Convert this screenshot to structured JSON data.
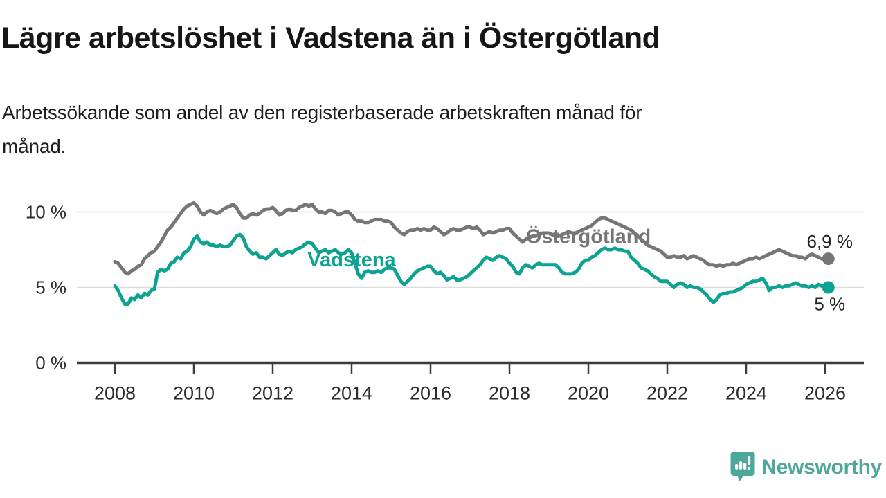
{
  "header": {
    "title": "Lägre arbetslöshet i Vadstena än i Östergötland",
    "subtitle_line1": "Arbetssökande som andel av den registerbaserade arbetskraften månad för",
    "subtitle_line2": "månad."
  },
  "branding": {
    "logo_text": "Newsworthy",
    "logo_color": "#4da79b"
  },
  "chart_data": {
    "type": "line",
    "title": "Lägre arbetslöshet i Vadstena än i Östergötland",
    "subtitle": "Arbetssökande som andel av den registerbaserade arbetskraften månad för månad.",
    "x_unit": "month",
    "x_start_year": 2008,
    "x_start": "2008-01",
    "x_end": "2026-02",
    "x_ticks": [
      2008,
      2010,
      2012,
      2014,
      2016,
      2018,
      2020,
      2022,
      2024,
      2026
    ],
    "y_ticks": [
      {
        "value": 10,
        "label": "10 %"
      },
      {
        "value": 5,
        "label": "5 %"
      },
      {
        "value": 0,
        "label": "0 %"
      }
    ],
    "ylim": [
      0,
      11
    ],
    "grid": true,
    "grid_color": "#dcdcdc",
    "axis_color": "#3c3c3c",
    "legend_position": "inline-labels",
    "series": [
      {
        "name": "Östergötland",
        "color": "#767676",
        "end_label": "6,9 %",
        "last_value": 6.9,
        "end_label_side": "above",
        "label_anchor": {
          "year": 2020.0,
          "value": 8.4
        },
        "values": [
          6.7,
          6.6,
          6.3,
          6.0,
          5.9,
          6.1,
          6.2,
          6.4,
          6.5,
          6.9,
          7.1,
          7.3,
          7.4,
          7.7,
          8.0,
          8.4,
          8.8,
          9.0,
          9.3,
          9.6,
          9.9,
          10.2,
          10.4,
          10.5,
          10.6,
          10.4,
          10.0,
          9.8,
          10.0,
          10.1,
          10.0,
          9.9,
          10.0,
          10.2,
          10.3,
          10.4,
          10.5,
          10.3,
          9.9,
          9.6,
          9.6,
          9.8,
          9.9,
          9.8,
          9.9,
          10.1,
          10.2,
          10.2,
          10.3,
          10.1,
          9.8,
          9.9,
          10.1,
          10.2,
          10.1,
          10.1,
          10.3,
          10.4,
          10.5,
          10.4,
          10.5,
          10.2,
          10.0,
          10.0,
          9.9,
          10.1,
          10.1,
          10.0,
          9.8,
          9.9,
          10.0,
          10.0,
          9.8,
          9.5,
          9.4,
          9.4,
          9.3,
          9.3,
          9.4,
          9.5,
          9.5,
          9.5,
          9.4,
          9.4,
          9.3,
          9.0,
          8.8,
          8.6,
          8.5,
          8.7,
          8.8,
          8.8,
          8.9,
          8.8,
          8.9,
          8.8,
          8.8,
          9.0,
          8.9,
          8.7,
          8.5,
          8.6,
          8.8,
          8.9,
          8.8,
          8.8,
          8.9,
          9.0,
          9.0,
          8.9,
          9.0,
          8.8,
          8.5,
          8.6,
          8.7,
          8.6,
          8.7,
          8.8,
          8.8,
          8.9,
          8.9,
          8.6,
          8.4,
          8.2,
          8.0,
          8.2,
          8.3,
          8.4,
          8.4,
          8.5,
          8.6,
          8.6,
          8.6,
          8.5,
          8.4,
          8.4,
          8.5,
          8.6,
          8.7,
          8.6,
          8.6,
          8.7,
          8.8,
          8.9,
          9.0,
          9.1,
          9.3,
          9.5,
          9.6,
          9.6,
          9.5,
          9.4,
          9.3,
          9.2,
          9.1,
          9.0,
          8.9,
          8.8,
          8.6,
          8.4,
          8.2,
          8.0,
          7.8,
          7.7,
          7.6,
          7.5,
          7.4,
          7.2,
          7.0,
          7.0,
          7.1,
          7.0,
          7.0,
          7.1,
          6.9,
          7.0,
          7.1,
          7.0,
          6.9,
          6.8,
          6.6,
          6.5,
          6.5,
          6.4,
          6.5,
          6.4,
          6.5,
          6.5,
          6.6,
          6.5,
          6.6,
          6.7,
          6.8,
          6.9,
          6.9,
          7.0,
          6.9,
          7.0,
          7.1,
          7.2,
          7.3,
          7.4,
          7.5,
          7.4,
          7.3,
          7.2,
          7.1,
          7.1,
          7.0,
          7.0,
          6.9,
          7.1,
          7.2,
          7.1,
          7.0,
          6.9,
          6.8,
          6.9
        ]
      },
      {
        "name": "Vadstena",
        "color": "#0ea292",
        "end_label": "5 %",
        "last_value": 5.0,
        "end_label_side": "below",
        "label_anchor": {
          "year": 2014.0,
          "value": 6.85
        },
        "values": [
          5.1,
          4.8,
          4.3,
          3.9,
          3.9,
          4.3,
          4.2,
          4.5,
          4.3,
          4.6,
          4.5,
          4.8,
          4.9,
          6.0,
          6.2,
          6.1,
          6.2,
          6.6,
          6.7,
          7.0,
          6.9,
          7.3,
          7.4,
          7.7,
          8.2,
          8.4,
          8.0,
          7.9,
          8.0,
          7.8,
          7.8,
          7.7,
          7.8,
          7.7,
          7.7,
          7.8,
          8.1,
          8.4,
          8.5,
          8.3,
          7.7,
          7.4,
          7.2,
          7.3,
          7.0,
          7.0,
          6.9,
          7.1,
          7.3,
          7.5,
          7.2,
          7.1,
          7.3,
          7.4,
          7.3,
          7.5,
          7.6,
          7.7,
          7.9,
          8.0,
          7.9,
          7.6,
          7.3,
          7.4,
          7.5,
          7.3,
          7.4,
          7.5,
          7.3,
          7.2,
          7.3,
          7.5,
          7.3,
          6.6,
          5.9,
          5.6,
          6.0,
          6.1,
          6.0,
          6.0,
          6.1,
          6.0,
          6.2,
          6.3,
          6.3,
          6.2,
          5.8,
          5.4,
          5.2,
          5.4,
          5.6,
          5.9,
          6.1,
          6.2,
          6.3,
          6.4,
          6.4,
          6.1,
          5.9,
          6.0,
          5.8,
          5.5,
          5.6,
          5.7,
          5.5,
          5.5,
          5.6,
          5.7,
          5.9,
          6.1,
          6.3,
          6.5,
          6.8,
          7.0,
          6.9,
          6.8,
          7.0,
          7.1,
          7.0,
          6.9,
          6.6,
          6.4,
          6.0,
          5.9,
          6.3,
          6.5,
          6.4,
          6.3,
          6.5,
          6.6,
          6.5,
          6.5,
          6.5,
          6.5,
          6.5,
          6.3,
          6.0,
          5.9,
          5.9,
          5.9,
          6.0,
          6.2,
          6.6,
          6.8,
          6.8,
          7.0,
          7.1,
          7.3,
          7.5,
          7.6,
          7.5,
          7.5,
          7.6,
          7.5,
          7.5,
          7.4,
          7.4,
          7.0,
          6.8,
          6.6,
          6.3,
          6.2,
          6.1,
          5.9,
          5.7,
          5.6,
          5.4,
          5.4,
          5.4,
          5.2,
          5.0,
          5.2,
          5.3,
          5.2,
          5.0,
          5.1,
          5.0,
          5.0,
          4.9,
          4.7,
          4.5,
          4.2,
          4.0,
          4.2,
          4.5,
          4.6,
          4.6,
          4.7,
          4.7,
          4.8,
          4.9,
          5.0,
          5.2,
          5.3,
          5.4,
          5.4,
          5.5,
          5.6,
          5.3,
          4.8,
          5.0,
          5.0,
          5.1,
          5.0,
          5.1,
          5.1,
          5.2,
          5.3,
          5.2,
          5.1,
          5.1,
          5.0,
          5.1,
          5.0,
          5.2,
          5.1,
          5.0,
          5.0
        ]
      }
    ]
  }
}
